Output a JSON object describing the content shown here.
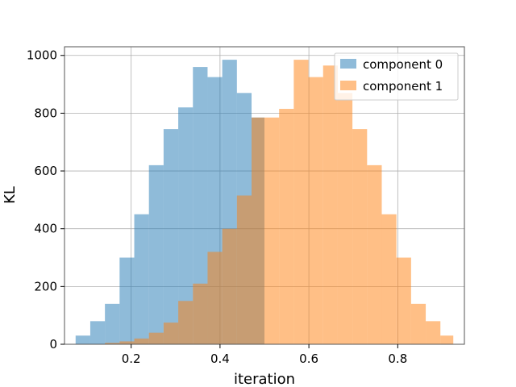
{
  "chart_data": {
    "type": "bar",
    "subtype": "overlapping-histogram",
    "xlabel": "iteration",
    "ylabel": "KL",
    "xlim": [
      0.05,
      0.95
    ],
    "ylim": [
      0,
      1030
    ],
    "xticks": [
      0.2,
      0.4,
      0.6,
      0.8
    ],
    "xtick_labels": [
      "0.2",
      "0.4",
      "0.6",
      "0.8"
    ],
    "yticks": [
      0,
      200,
      400,
      600,
      800,
      1000
    ],
    "ytick_labels": [
      "0",
      "200",
      "400",
      "600",
      "800",
      "1000"
    ],
    "grid": true,
    "legend": "top-right",
    "bar_opacity": 0.5,
    "series": [
      {
        "name": "component 0",
        "color": "#1f77b4",
        "bins": [
          [
            0.075,
            0.108,
            30
          ],
          [
            0.108,
            0.141,
            80
          ],
          [
            0.141,
            0.174,
            140
          ],
          [
            0.174,
            0.207,
            300
          ],
          [
            0.207,
            0.24,
            450
          ],
          [
            0.24,
            0.273,
            620
          ],
          [
            0.273,
            0.306,
            745
          ],
          [
            0.306,
            0.339,
            820
          ],
          [
            0.339,
            0.372,
            960
          ],
          [
            0.372,
            0.405,
            925
          ],
          [
            0.405,
            0.438,
            985
          ],
          [
            0.438,
            0.471,
            870
          ],
          [
            0.471,
            0.5,
            785
          ]
        ]
      },
      {
        "name": "component 1",
        "color": "#ff7f0e",
        "bins": [
          [
            0.141,
            0.174,
            5
          ],
          [
            0.174,
            0.207,
            10
          ],
          [
            0.207,
            0.24,
            20
          ],
          [
            0.24,
            0.273,
            40
          ],
          [
            0.273,
            0.306,
            75
          ],
          [
            0.306,
            0.339,
            150
          ],
          [
            0.339,
            0.372,
            210
          ],
          [
            0.372,
            0.405,
            320
          ],
          [
            0.405,
            0.438,
            400
          ],
          [
            0.438,
            0.471,
            515
          ],
          [
            0.471,
            0.5,
            785
          ],
          [
            0.5,
            0.533,
            785
          ],
          [
            0.533,
            0.566,
            815
          ],
          [
            0.566,
            0.599,
            985
          ],
          [
            0.599,
            0.632,
            925
          ],
          [
            0.632,
            0.665,
            965
          ],
          [
            0.665,
            0.698,
            870
          ],
          [
            0.698,
            0.731,
            745
          ],
          [
            0.731,
            0.764,
            620
          ],
          [
            0.764,
            0.797,
            450
          ],
          [
            0.797,
            0.83,
            300
          ],
          [
            0.83,
            0.863,
            140
          ],
          [
            0.863,
            0.896,
            80
          ],
          [
            0.896,
            0.925,
            30
          ]
        ]
      }
    ]
  }
}
